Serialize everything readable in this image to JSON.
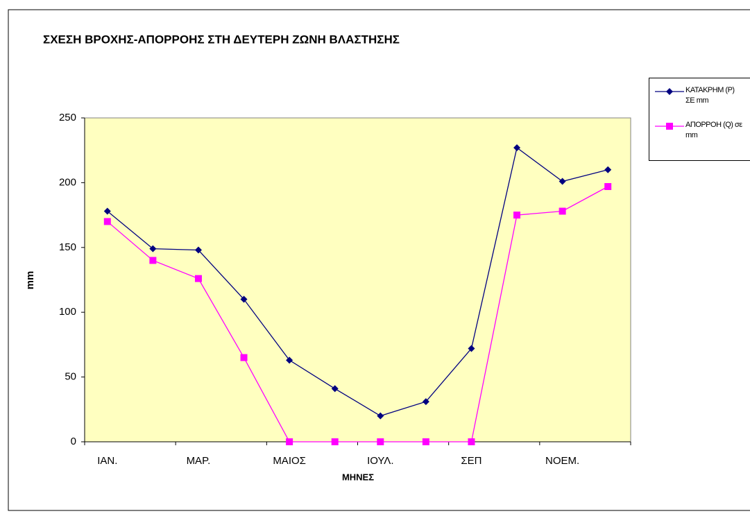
{
  "chart_data": {
    "type": "line",
    "title": "ΣΧΕΣΗ ΒΡΟΧΗΣ-ΑΠΟΡΡΟΗΣ ΣΤΗ ΔΕΥΤΕΡΗ ΖΩΝΗ ΒΛΑΣΤΗΣΗΣ",
    "x_label": "ΜΗΝΕΣ",
    "y_label": "mm",
    "categories": [
      "ΙΑΝ.",
      null,
      "ΜΑΡ.",
      null,
      "ΜΑΙΟΣ",
      null,
      "ΙΟΥΛ.",
      null,
      "ΣΕΠ",
      null,
      "ΝΟΕΜ.",
      null
    ],
    "series": [
      {
        "name": "ΚΑΤΑΚΡΗΜ (P) ΣΕ mm",
        "color": "#000080",
        "marker": "diamond",
        "values": [
          178,
          149,
          148,
          110,
          63,
          41,
          20,
          31,
          72,
          227,
          201,
          210
        ]
      },
      {
        "name": "ΑΠΟΡΡΟΗ (Q) σε mm",
        "color": "#ff00ff",
        "marker": "square",
        "values": [
          170,
          140,
          126,
          65,
          0,
          0,
          0,
          0,
          0,
          175,
          178,
          197
        ]
      }
    ],
    "ylim": [
      0,
      250
    ],
    "yticks": [
      0,
      50,
      100,
      150,
      200,
      250
    ],
    "grid": false,
    "legend": "right"
  }
}
